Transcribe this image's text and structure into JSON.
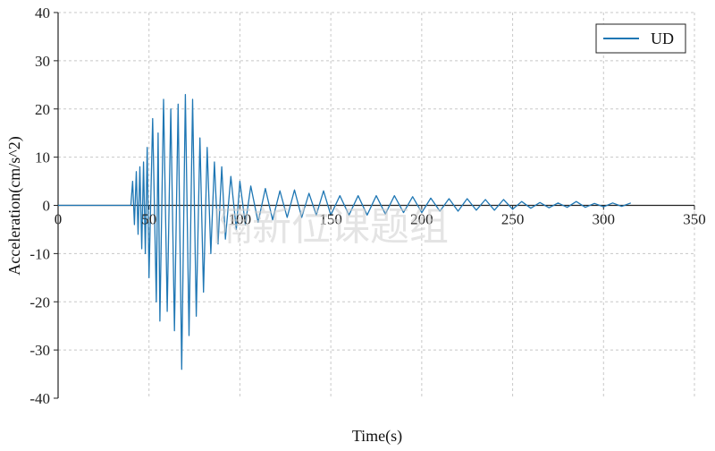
{
  "chart_data": {
    "type": "line",
    "xlabel": "Time(s)",
    "ylabel": "Acceleration(cm/s^2)",
    "xlim": [
      0,
      350
    ],
    "ylim": [
      -40,
      40
    ],
    "xticks": [
      0,
      50,
      100,
      150,
      200,
      250,
      300,
      350
    ],
    "yticks": [
      40,
      30,
      20,
      10,
      0,
      -10,
      -20,
      -30,
      -40
    ],
    "grid": true,
    "legend_position": "top-right",
    "color": "#1f77b4",
    "watermark": "隔新位课题组",
    "series": [
      {
        "name": "UD",
        "x": [
          0,
          40,
          41,
          42,
          43,
          44,
          45,
          46,
          47,
          48,
          49,
          50,
          52,
          54,
          55,
          56,
          58,
          60,
          62,
          64,
          66,
          68,
          70,
          72,
          74,
          76,
          78,
          80,
          82,
          84,
          86,
          88,
          90,
          92,
          95,
          98,
          100,
          103,
          106,
          110,
          114,
          118,
          122,
          126,
          130,
          134,
          138,
          142,
          146,
          150,
          155,
          160,
          165,
          170,
          175,
          180,
          185,
          190,
          195,
          200,
          205,
          210,
          215,
          220,
          225,
          230,
          235,
          240,
          245,
          250,
          255,
          260,
          265,
          270,
          275,
          280,
          285,
          290,
          295,
          300,
          305,
          310,
          315
        ],
        "y": [
          0,
          0,
          5,
          -4,
          7,
          -6,
          8,
          -9,
          9,
          -10,
          12,
          -15,
          18,
          -20,
          15,
          -24,
          22,
          -22,
          20,
          -26,
          21,
          -34,
          23,
          -27,
          22,
          -23,
          14,
          -18,
          12,
          -10,
          9,
          -8,
          8,
          -7,
          6,
          -5,
          5,
          -4,
          4,
          -3.5,
          3.5,
          -3,
          3,
          -2.5,
          3.2,
          -2.5,
          2.5,
          -2,
          3,
          -2,
          2,
          -2,
          2,
          -2,
          2,
          -1.8,
          2,
          -1.5,
          1.8,
          -1.5,
          1.5,
          -1.2,
          1.4,
          -1.2,
          1.4,
          -1,
          1.2,
          -1,
          1.2,
          -0.8,
          0.8,
          -0.6,
          0.6,
          -0.5,
          0.5,
          -0.4,
          0.8,
          -0.4,
          0.4,
          -0.3,
          0.5,
          -0.2,
          0.5
        ]
      }
    ]
  }
}
